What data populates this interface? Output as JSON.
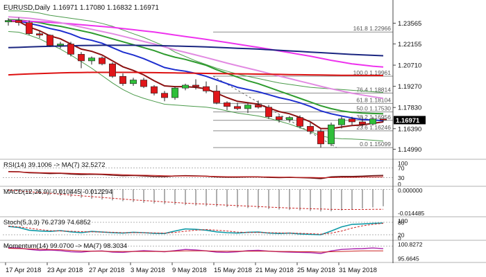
{
  "header": {
    "symbol_label": "EURUSD,Daily",
    "ohlc_text": "1.16971 1.17080 1.16832 1.16971"
  },
  "chart_data": {
    "type": "candlestick",
    "x_tick_labels": [
      "17 Apr 2018",
      "23 Apr 2018",
      "27 Apr 2018",
      "3 May 2018",
      "9 May 2018",
      "15 May 2018",
      "21 May 2018",
      "25 May 2018",
      "31 May 2018"
    ],
    "price_axis": {
      "ylim": [
        1.144,
        1.242
      ],
      "ticks": [
        "1.23565",
        "1.22155",
        "1.20710",
        "1.19270",
        "1.17830",
        "1.16390",
        "1.14990"
      ],
      "last_price_label": "1.16971"
    },
    "candles": [
      {
        "o": 1.2365,
        "h": 1.239,
        "l": 1.234,
        "c": 1.2375
      },
      {
        "o": 1.2375,
        "h": 1.2395,
        "l": 1.234,
        "c": 1.236
      },
      {
        "o": 1.236,
        "h": 1.2375,
        "l": 1.2275,
        "c": 1.2285
      },
      {
        "o": 1.2285,
        "h": 1.2305,
        "l": 1.2255,
        "c": 1.2275
      },
      {
        "o": 1.2275,
        "h": 1.228,
        "l": 1.2195,
        "c": 1.2205
      },
      {
        "o": 1.2205,
        "h": 1.223,
        "l": 1.2185,
        "c": 1.2215
      },
      {
        "o": 1.2215,
        "h": 1.223,
        "l": 1.213,
        "c": 1.2145
      },
      {
        "o": 1.2145,
        "h": 1.216,
        "l": 1.205,
        "c": 1.21
      },
      {
        "o": 1.21,
        "h": 1.213,
        "l": 1.2075,
        "c": 1.212
      },
      {
        "o": 1.212,
        "h": 1.213,
        "l": 1.207,
        "c": 1.208
      },
      {
        "o": 1.208,
        "h": 1.209,
        "l": 1.1985,
        "c": 1.1995
      },
      {
        "o": 1.1995,
        "h": 1.2015,
        "l": 1.193,
        "c": 1.1945
      },
      {
        "o": 1.1945,
        "h": 1.1985,
        "l": 1.193,
        "c": 1.197
      },
      {
        "o": 1.197,
        "h": 1.1985,
        "l": 1.1915,
        "c": 1.1925
      },
      {
        "o": 1.1925,
        "h": 1.1935,
        "l": 1.1865,
        "c": 1.188
      },
      {
        "o": 1.188,
        "h": 1.1895,
        "l": 1.1825,
        "c": 1.185
      },
      {
        "o": 1.185,
        "h": 1.1925,
        "l": 1.1835,
        "c": 1.1915
      },
      {
        "o": 1.1915,
        "h": 1.1945,
        "l": 1.19,
        "c": 1.1935
      },
      {
        "o": 1.1935,
        "h": 1.1975,
        "l": 1.1905,
        "c": 1.1925
      },
      {
        "o": 1.1925,
        "h": 1.196,
        "l": 1.188,
        "c": 1.1895
      },
      {
        "o": 1.1895,
        "h": 1.1935,
        "l": 1.1805,
        "c": 1.1815
      },
      {
        "o": 1.1815,
        "h": 1.1825,
        "l": 1.1765,
        "c": 1.179
      },
      {
        "o": 1.179,
        "h": 1.1815,
        "l": 1.1765,
        "c": 1.1775
      },
      {
        "o": 1.1775,
        "h": 1.1815,
        "l": 1.1745,
        "c": 1.18
      },
      {
        "o": 1.18,
        "h": 1.183,
        "l": 1.1775,
        "c": 1.1785
      },
      {
        "o": 1.1785,
        "h": 1.18,
        "l": 1.1705,
        "c": 1.172
      },
      {
        "o": 1.172,
        "h": 1.173,
        "l": 1.168,
        "c": 1.17
      },
      {
        "o": 1.17,
        "h": 1.1725,
        "l": 1.168,
        "c": 1.1715
      },
      {
        "o": 1.1715,
        "h": 1.173,
        "l": 1.164,
        "c": 1.1655
      },
      {
        "o": 1.1655,
        "h": 1.168,
        "l": 1.16,
        "c": 1.162
      },
      {
        "o": 1.162,
        "h": 1.1635,
        "l": 1.151,
        "c": 1.1535
      },
      {
        "o": 1.1535,
        "h": 1.168,
        "l": 1.152,
        "c": 1.1665
      },
      {
        "o": 1.1665,
        "h": 1.172,
        "l": 1.164,
        "c": 1.1705
      },
      {
        "o": 1.1705,
        "h": 1.172,
        "l": 1.1665,
        "c": 1.1685
      },
      {
        "o": 1.1685,
        "h": 1.172,
        "l": 1.165,
        "c": 1.167
      },
      {
        "o": 1.167,
        "h": 1.172,
        "l": 1.166,
        "c": 1.1705
      },
      {
        "o": 1.1705,
        "h": 1.1708,
        "l": 1.1683,
        "c": 1.1697
      }
    ],
    "moving_averages": [
      {
        "color": "#1e2fcf",
        "values": [
          1.2375,
          1.2372,
          1.2355,
          1.234,
          1.232,
          1.2305,
          1.2283,
          1.2255,
          1.224,
          1.222,
          1.219,
          1.216,
          1.214,
          1.2115,
          1.2085,
          1.2055,
          1.204,
          1.203,
          1.2015,
          1.1995,
          1.197,
          1.1945,
          1.192,
          1.1905,
          1.189,
          1.187,
          1.185,
          1.1835,
          1.1815,
          1.179,
          1.176,
          1.174,
          1.1725,
          1.1712,
          1.17,
          1.1698,
          1.1693
        ]
      },
      {
        "color": "#8b1010",
        "values": [
          1.237,
          1.2368,
          1.233,
          1.2305,
          1.227,
          1.225,
          1.2215,
          1.218,
          1.2165,
          1.214,
          1.21,
          1.206,
          1.2035,
          1.2005,
          1.1965,
          1.193,
          1.1925,
          1.1925,
          1.192,
          1.191,
          1.188,
          1.185,
          1.1825,
          1.1815,
          1.1805,
          1.178,
          1.1755,
          1.174,
          1.1715,
          1.1685,
          1.164,
          1.164,
          1.165,
          1.166,
          1.1665,
          1.1675,
          1.1685
        ]
      },
      {
        "color": "#2e9b2e",
        "values": [
          1.238,
          1.2378,
          1.237,
          1.236,
          1.2345,
          1.2335,
          1.232,
          1.2305,
          1.229,
          1.227,
          1.225,
          1.223,
          1.221,
          1.219,
          1.217,
          1.2145,
          1.2125,
          1.211,
          1.209,
          1.207,
          1.204,
          1.2015,
          1.199,
          1.1965,
          1.1945,
          1.192,
          1.1895,
          1.187,
          1.1845,
          1.182,
          1.1795,
          1.1775,
          1.176,
          1.175,
          1.1745,
          1.1742,
          1.174
        ]
      },
      {
        "color": "#ee33ee",
        "values": [
          1.2375,
          1.2373,
          1.237,
          1.2366,
          1.2362,
          1.2358,
          1.2352,
          1.2346,
          1.234,
          1.2334,
          1.2328,
          1.232,
          1.2312,
          1.2304,
          1.2296,
          1.2286,
          1.2276,
          1.2266,
          1.2256,
          1.2246,
          1.2236,
          1.2225,
          1.2214,
          1.2203,
          1.2192,
          1.218,
          1.2168,
          1.2156,
          1.2144,
          1.2132,
          1.2118,
          1.2104,
          1.2092,
          1.208,
          1.2072,
          1.2064,
          1.2058
        ]
      },
      {
        "color": "#e28ae2",
        "values": [
          1.24,
          1.2395,
          1.239,
          1.2382,
          1.2372,
          1.236,
          1.2345,
          1.233,
          1.2315,
          1.23,
          1.2285,
          1.2268,
          1.225,
          1.2232,
          1.2215,
          1.2195,
          1.2175,
          1.2158,
          1.214,
          1.2122,
          1.2104,
          1.2085,
          1.2067,
          1.205,
          1.2033,
          1.2015,
          1.1997,
          1.198,
          1.1962,
          1.1945,
          1.1927,
          1.191,
          1.1895,
          1.188,
          1.1868,
          1.1856,
          1.1845
        ]
      },
      {
        "color": "#1a2580",
        "values": [
          1.219,
          1.2192,
          1.2195,
          1.2197,
          1.2199,
          1.2201,
          1.2203,
          1.2204,
          1.2205,
          1.2206,
          1.2206,
          1.2206,
          1.2206,
          1.2205,
          1.2204,
          1.2203,
          1.2201,
          1.2199,
          1.2197,
          1.2195,
          1.2192,
          1.2189,
          1.2186,
          1.2183,
          1.218,
          1.2176,
          1.2172,
          1.2168,
          1.2164,
          1.216,
          1.2156,
          1.2152,
          1.2148,
          1.2144,
          1.2141,
          1.2138,
          1.2135
        ]
      },
      {
        "color": "#dd1111",
        "values": [
          1.2005,
          1.2008,
          1.2011,
          1.2014,
          1.2016,
          1.2018,
          1.202,
          1.2021,
          1.2022,
          1.2022,
          1.2022,
          1.2022,
          1.2022,
          1.2021,
          1.202,
          1.2019,
          1.2018,
          1.2017,
          1.2016,
          1.2015,
          1.2014,
          1.2013,
          1.2012,
          1.2011,
          1.201,
          1.2009,
          1.2008,
          1.2007,
          1.2006,
          1.2005,
          1.2004,
          1.2003,
          1.2002,
          1.2002,
          1.2001,
          1.2001,
          1.2
        ]
      }
    ],
    "bollinger_bands": [
      {
        "color": "#4a9a4a",
        "values": [
          1.244,
          1.244,
          1.2435,
          1.2425,
          1.241,
          1.24,
          1.239,
          1.238,
          1.237,
          1.2355,
          1.2335,
          1.231,
          1.2285,
          1.226,
          1.223,
          1.22,
          1.216,
          1.213,
          1.21,
          1.2075,
          1.205,
          1.203,
          1.201,
          1.1995,
          1.198,
          1.1965,
          1.195,
          1.194,
          1.193,
          1.192,
          1.1915,
          1.191,
          1.1905,
          1.19,
          1.1895,
          1.189,
          1.1885
        ]
      },
      {
        "color": "#4a9a4a",
        "values": [
          1.23,
          1.2295,
          1.2275,
          1.225,
          1.2215,
          1.218,
          1.214,
          1.2095,
          1.205,
          1.2,
          1.195,
          1.1905,
          1.187,
          1.1845,
          1.1825,
          1.1805,
          1.18,
          1.1795,
          1.179,
          1.1785,
          1.1775,
          1.176,
          1.1745,
          1.1735,
          1.1725,
          1.171,
          1.169,
          1.167,
          1.1645,
          1.162,
          1.159,
          1.1575,
          1.157,
          1.1568,
          1.1565,
          1.156,
          1.1555
        ]
      }
    ],
    "fibonacci_levels": [
      {
        "label": "161.8 1.22966",
        "price": 1.22966,
        "color": "#8a8a8a"
      },
      {
        "label": "100.0 1.19961",
        "price": 1.19961,
        "color": "#8a8a8a"
      },
      {
        "label": "76.4 1.18814",
        "price": 1.18814,
        "color": "#8a8a8a"
      },
      {
        "label": "61.8 1.18104",
        "price": 1.18104,
        "color": "#8a8a8a"
      },
      {
        "label": "50.0 1.17530",
        "price": 1.1753,
        "color": "#8a8a8a"
      },
      {
        "label": "38.2 1.16956",
        "price": 1.16956,
        "color": "#8a8a8a"
      },
      {
        "label": "23.6 1.16246",
        "price": 1.16246,
        "color": "#8a8a8a"
      },
      {
        "label": "0.0 1.15099",
        "price": 1.15099,
        "color": "#8a8a8a"
      }
    ],
    "panels": {
      "rsi": {
        "label": "RSI(14) 39.1006 -> MA(7) 32.5272",
        "axis_labels": [
          "100",
          "70",
          "30",
          "0"
        ],
        "ylim": [
          0,
          100
        ],
        "rsi_values": [
          55,
          54,
          50,
          49,
          47,
          48,
          45,
          43,
          44,
          43,
          40,
          38,
          39,
          37,
          35,
          34,
          37,
          38,
          37,
          36,
          33,
          32,
          32,
          33,
          33,
          31,
          30,
          31,
          30,
          29,
          26,
          33,
          35,
          35,
          36,
          38,
          39
        ],
        "ma_values": [
          54,
          53,
          52,
          51,
          50,
          49,
          48,
          47,
          46,
          45,
          44,
          42,
          41,
          40,
          39,
          38,
          37,
          37,
          36,
          36,
          35,
          34,
          34,
          34,
          33,
          33,
          32,
          32,
          31,
          31,
          30,
          30,
          31,
          31,
          32,
          32,
          33
        ],
        "rsi_color": "#6b1111",
        "ma_color": "#cc2222"
      },
      "macd": {
        "label": "MACD(12,26,9) -0.010445 -0.012294",
        "axis_labels": [
          "0.000000",
          "-0.014485"
        ],
        "ylim": [
          -0.016,
          0.001
        ],
        "histogram": [
          -0.001,
          -0.0016,
          -0.0022,
          -0.0028,
          -0.0034,
          -0.004,
          -0.0046,
          -0.0052,
          -0.0058,
          -0.0063,
          -0.0068,
          -0.0073,
          -0.0078,
          -0.0083,
          -0.0087,
          -0.0091,
          -0.0094,
          -0.0097,
          -0.01,
          -0.0103,
          -0.0106,
          -0.0109,
          -0.0112,
          -0.0115,
          -0.0118,
          -0.0121,
          -0.0124,
          -0.0127,
          -0.013,
          -0.0133,
          -0.0136,
          -0.0135,
          -0.013,
          -0.0124,
          -0.0118,
          -0.0111,
          -0.0104
        ],
        "signal": [
          -0.0005,
          -0.001,
          -0.0015,
          -0.002,
          -0.0025,
          -0.003,
          -0.0035,
          -0.004,
          -0.0045,
          -0.005,
          -0.0055,
          -0.006,
          -0.0065,
          -0.0069,
          -0.0073,
          -0.0077,
          -0.0081,
          -0.0085,
          -0.0088,
          -0.0091,
          -0.0094,
          -0.0097,
          -0.01,
          -0.0103,
          -0.0106,
          -0.0109,
          -0.0112,
          -0.0115,
          -0.0117,
          -0.0119,
          -0.0121,
          -0.0123,
          -0.0124,
          -0.0124,
          -0.0124,
          -0.0123,
          -0.0123
        ],
        "histogram_color": "#777777",
        "signal_color": "#cc2222"
      },
      "stoch": {
        "label": "Stoch(5,3,3) 76.2739 74.6852",
        "axis_labels": [
          "100",
          "80",
          "20",
          "0"
        ],
        "ylim": [
          0,
          100
        ],
        "k_values": [
          60,
          55,
          42,
          38,
          36,
          40,
          34,
          30,
          36,
          33,
          30,
          28,
          32,
          30,
          27,
          26,
          38,
          48,
          46,
          42,
          34,
          30,
          28,
          32,
          33,
          28,
          26,
          28,
          24,
          22,
          20,
          38,
          58,
          70,
          72,
          75,
          76
        ],
        "d_values": [
          62,
          58,
          52,
          45,
          40,
          38,
          37,
          35,
          34,
          33,
          32,
          30,
          30,
          30,
          29,
          28,
          31,
          37,
          42,
          45,
          42,
          38,
          33,
          31,
          31,
          30,
          29,
          28,
          27,
          25,
          23,
          28,
          38,
          52,
          63,
          70,
          75
        ],
        "k_color": "#0e9aa7",
        "d_color": "#cc2222"
      },
      "momentum": {
        "label": "Momentum(14) 99.0700 -> MA(7) 98.3034",
        "axis_labels": [
          "100.8272",
          "95.6645"
        ],
        "ylim": [
          95.0,
          101.5
        ],
        "mom_values": [
          99.4,
          99.3,
          98.8,
          98.5,
          98.6,
          98.4,
          98.0,
          97.9,
          98.2,
          98.3,
          97.9,
          97.8,
          98.1,
          98.4,
          98.2,
          98.0,
          98.4,
          98.8,
          98.6,
          98.3,
          97.9,
          97.8,
          98.0,
          98.4,
          98.5,
          98.2,
          98.0,
          97.9,
          97.8,
          97.7,
          97.4,
          98.3,
          98.8,
          99.0,
          99.1,
          99.3,
          99.07
        ],
        "ma_values": [
          99.2,
          99.1,
          99.0,
          98.9,
          98.8,
          98.7,
          98.5,
          98.3,
          98.2,
          98.2,
          98.1,
          98.1,
          98.1,
          98.1,
          98.1,
          98.1,
          98.2,
          98.3,
          98.3,
          98.3,
          98.2,
          98.2,
          98.2,
          98.2,
          98.2,
          98.2,
          98.1,
          98.1,
          98.0,
          98.0,
          97.9,
          98.0,
          98.1,
          98.2,
          98.3,
          98.3,
          98.3
        ],
        "mom_color": "#aa22aa",
        "ma_color": "#cc2222"
      }
    }
  },
  "colors": {
    "bull_candle": "#2fbf3a",
    "bear_candle": "#e0161a",
    "last_price_bg": "#000000",
    "last_price_fg": "#ffffff",
    "separator": "#b0b0b0"
  }
}
